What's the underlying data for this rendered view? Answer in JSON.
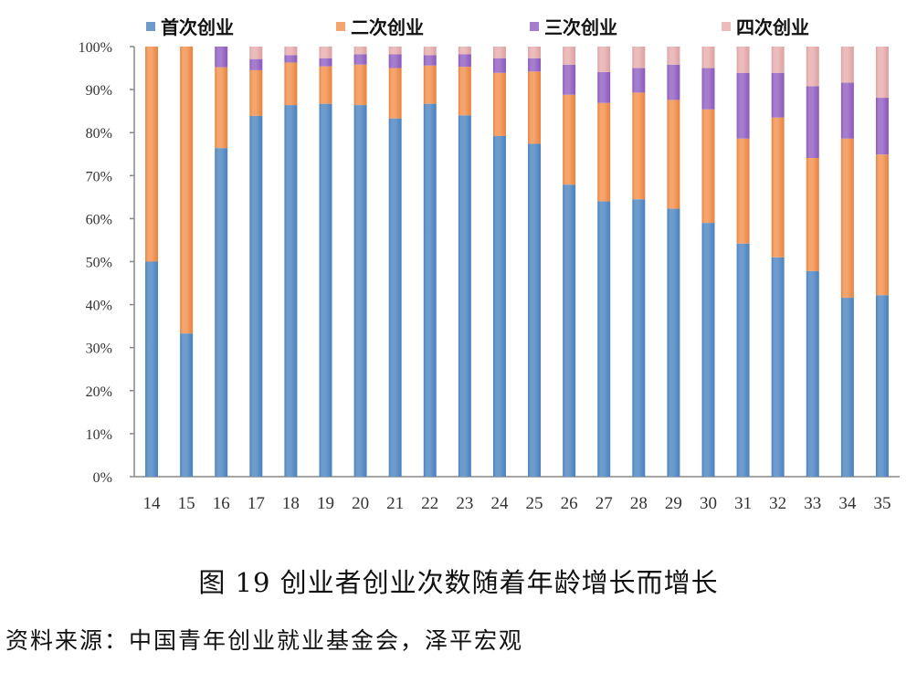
{
  "chart_data": {
    "type": "bar",
    "stacked": true,
    "title": "",
    "xlabel": "",
    "ylabel": "",
    "ylim": [
      0,
      100
    ],
    "y_ticks": [
      "0%",
      "10%",
      "20%",
      "30%",
      "40%",
      "50%",
      "60%",
      "70%",
      "80%",
      "90%",
      "100%"
    ],
    "grid": false,
    "legend_position": "top",
    "categories": [
      "14",
      "15",
      "16",
      "17",
      "18",
      "19",
      "20",
      "21",
      "22",
      "23",
      "24",
      "25",
      "26",
      "27",
      "28",
      "29",
      "30",
      "31",
      "32",
      "33",
      "34",
      "35"
    ],
    "series": [
      {
        "name": "首次创业",
        "color": "#6d9bcc",
        "values": [
          50,
          33.3,
          76.4,
          83.9,
          86.4,
          86.7,
          86.4,
          83.3,
          86.7,
          84.0,
          79.2,
          77.4,
          67.9,
          64.0,
          64.5,
          62.3,
          59.0,
          54.2,
          51.0,
          47.8,
          41.6,
          42.2
        ]
      },
      {
        "name": "二次创业",
        "color": "#f4a46c",
        "values": [
          50,
          66.7,
          18.8,
          10.6,
          9.9,
          8.7,
          9.4,
          11.7,
          8.9,
          11.3,
          14.7,
          16.8,
          20.9,
          22.9,
          24.8,
          25.3,
          26.4,
          24.4,
          32.5,
          26.3,
          37.0,
          32.7
        ]
      },
      {
        "name": "三次创业",
        "color": "#a67ccc",
        "values": [
          0,
          0,
          4.8,
          2.6,
          1.7,
          1.9,
          2.4,
          3.2,
          2.4,
          2.9,
          3.4,
          3.1,
          7.0,
          7.2,
          5.7,
          8.2,
          9.6,
          15.3,
          10.4,
          16.7,
          13.0,
          13.2
        ]
      },
      {
        "name": "四次创业",
        "color": "#ecbcbc",
        "values": [
          0,
          0,
          0,
          2.9,
          2.0,
          2.7,
          1.8,
          1.8,
          2.0,
          1.8,
          2.7,
          2.7,
          4.2,
          5.9,
          5.0,
          4.2,
          5.0,
          6.1,
          6.1,
          9.2,
          8.4,
          11.9
        ]
      }
    ]
  },
  "caption": "图 19  创业者创业次数随着年龄增长而增长",
  "source": "资料来源：中国青年创业就业基金会，泽平宏观"
}
